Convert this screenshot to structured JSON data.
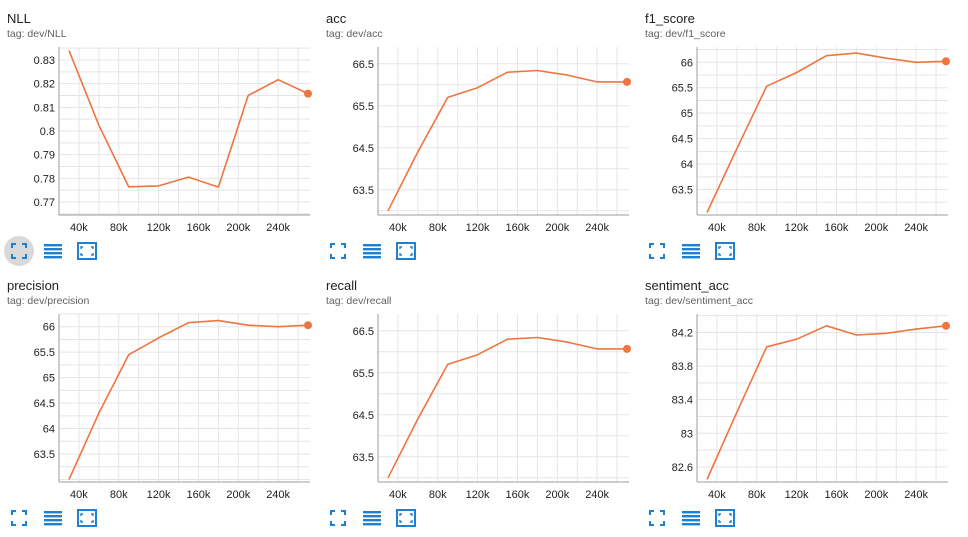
{
  "theme": {
    "line_color": "#f0743d",
    "grid_color": "#e5e5e5",
    "icon_color": "#1f7fd0"
  },
  "toolbar_icons": [
    "fit-domain-icon",
    "log-scale-icon",
    "expand-icon"
  ],
  "chart_data": [
    {
      "type": "line",
      "title": "NLL",
      "tag": "tag: dev/NLL",
      "xlim": [
        20000,
        272000
      ],
      "ylim": [
        0.7645,
        0.8355
      ],
      "xticks": [
        40000,
        80000,
        120000,
        160000,
        200000,
        240000
      ],
      "xtick_labels": [
        "40k",
        "80k",
        "120k",
        "160k",
        "200k",
        "240k"
      ],
      "yticks": [
        0.77,
        0.78,
        0.79,
        0.8,
        0.81,
        0.82,
        0.83
      ],
      "ytick_labels": [
        "0.77",
        "0.78",
        "0.79",
        "0.8",
        "0.81",
        "0.82",
        "0.83"
      ],
      "x": [
        30000,
        60000,
        90000,
        120000,
        150000,
        180000,
        210000,
        240000,
        270000
      ],
      "y": [
        0.834,
        0.8025,
        0.7764,
        0.7768,
        0.7805,
        0.7763,
        0.815,
        0.8217,
        0.8158
      ],
      "toolbar_active": true
    },
    {
      "type": "line",
      "title": "acc",
      "tag": "tag: dev/acc",
      "xlim": [
        20000,
        272000
      ],
      "ylim": [
        62.9,
        66.9
      ],
      "xticks": [
        40000,
        80000,
        120000,
        160000,
        200000,
        240000
      ],
      "xtick_labels": [
        "40k",
        "80k",
        "120k",
        "160k",
        "200k",
        "240k"
      ],
      "yticks": [
        63.5,
        64.5,
        65.5,
        66.5
      ],
      "ytick_labels": [
        "63.5",
        "64.5",
        "65.5",
        "66.5"
      ],
      "x": [
        30000,
        60000,
        90000,
        120000,
        150000,
        180000,
        210000,
        240000,
        270000
      ],
      "y": [
        63.0,
        64.4,
        65.7,
        65.93,
        66.3,
        66.34,
        66.23,
        66.07,
        66.07
      ],
      "toolbar_active": false
    },
    {
      "type": "line",
      "title": "f1_score",
      "tag": "tag: dev/f1_score",
      "xlim": [
        20000,
        272000
      ],
      "ylim": [
        63.0,
        66.3
      ],
      "xticks": [
        40000,
        80000,
        120000,
        160000,
        200000,
        240000
      ],
      "xtick_labels": [
        "40k",
        "80k",
        "120k",
        "160k",
        "200k",
        "240k"
      ],
      "yticks": [
        63.5,
        64,
        64.5,
        65,
        65.5,
        66
      ],
      "ytick_labels": [
        "63.5",
        "64",
        "64.5",
        "65",
        "65.5",
        "66"
      ],
      "x": [
        30000,
        60000,
        90000,
        120000,
        150000,
        180000,
        210000,
        240000,
        270000
      ],
      "y": [
        63.05,
        64.3,
        65.53,
        65.8,
        66.13,
        66.18,
        66.08,
        66.0,
        66.02
      ],
      "toolbar_active": false
    },
    {
      "type": "line",
      "title": "precision",
      "tag": "tag: dev/precision",
      "xlim": [
        20000,
        272000
      ],
      "ylim": [
        62.95,
        66.25
      ],
      "xticks": [
        40000,
        80000,
        120000,
        160000,
        200000,
        240000
      ],
      "xtick_labels": [
        "40k",
        "80k",
        "120k",
        "160k",
        "200k",
        "240k"
      ],
      "yticks": [
        63.5,
        64,
        64.5,
        65,
        65.5,
        66
      ],
      "ytick_labels": [
        "63.5",
        "64",
        "64.5",
        "65",
        "65.5",
        "66"
      ],
      "x": [
        30000,
        60000,
        90000,
        120000,
        150000,
        180000,
        210000,
        240000,
        270000
      ],
      "y": [
        63.0,
        64.3,
        65.45,
        65.78,
        66.08,
        66.12,
        66.03,
        66.0,
        66.03
      ],
      "toolbar_active": false
    },
    {
      "type": "line",
      "title": "recall",
      "tag": "tag: dev/recall",
      "xlim": [
        20000,
        272000
      ],
      "ylim": [
        62.9,
        66.9
      ],
      "xticks": [
        40000,
        80000,
        120000,
        160000,
        200000,
        240000
      ],
      "xtick_labels": [
        "40k",
        "80k",
        "120k",
        "160k",
        "200k",
        "240k"
      ],
      "yticks": [
        63.5,
        64.5,
        65.5,
        66.5
      ],
      "ytick_labels": [
        "63.5",
        "64.5",
        "65.5",
        "66.5"
      ],
      "x": [
        30000,
        60000,
        90000,
        120000,
        150000,
        180000,
        210000,
        240000,
        270000
      ],
      "y": [
        63.0,
        64.4,
        65.7,
        65.93,
        66.3,
        66.34,
        66.23,
        66.07,
        66.07
      ],
      "toolbar_active": false
    },
    {
      "type": "line",
      "title": "sentiment_acc",
      "tag": "tag: dev/sentiment_acc",
      "xlim": [
        20000,
        272000
      ],
      "ylim": [
        82.42,
        84.42
      ],
      "xticks": [
        40000,
        80000,
        120000,
        160000,
        200000,
        240000
      ],
      "xtick_labels": [
        "40k",
        "80k",
        "120k",
        "160k",
        "200k",
        "240k"
      ],
      "yticks": [
        82.6,
        83,
        83.4,
        83.8,
        84.2
      ],
      "ytick_labels": [
        "82.6",
        "83",
        "83.4",
        "83.8",
        "84.2"
      ],
      "x": [
        30000,
        60000,
        90000,
        120000,
        150000,
        180000,
        210000,
        240000,
        270000
      ],
      "y": [
        82.45,
        83.25,
        84.03,
        84.12,
        84.28,
        84.17,
        84.19,
        84.24,
        84.28
      ],
      "toolbar_active": false
    }
  ]
}
